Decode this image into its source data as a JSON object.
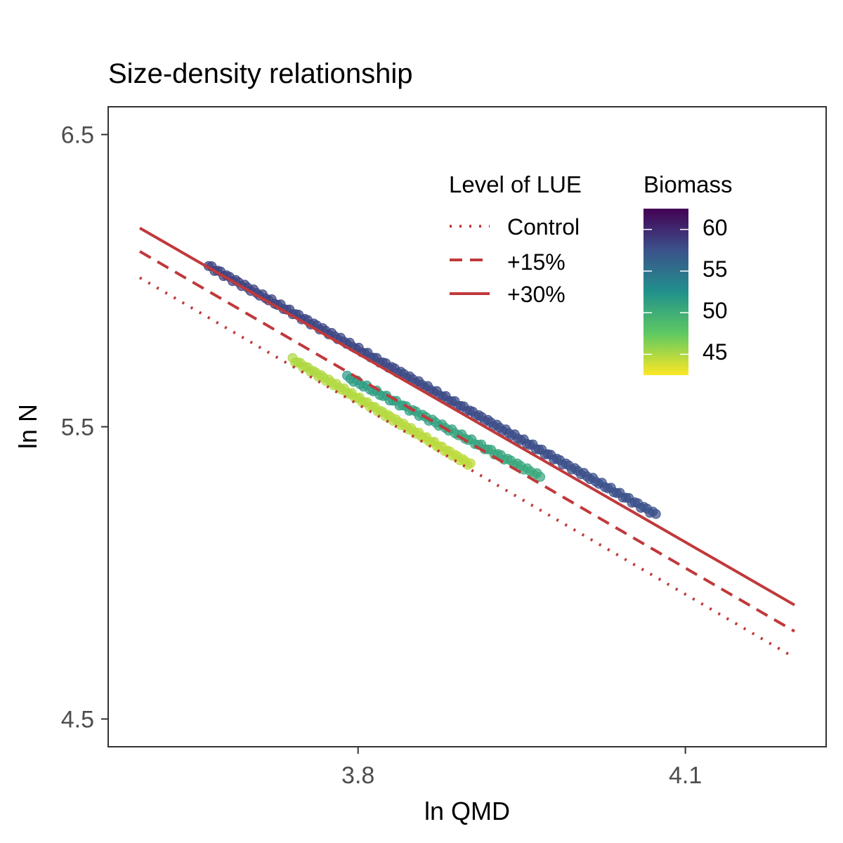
{
  "chart_data": {
    "type": "scatter",
    "title": "Size-density relationship",
    "xlabel": "ln QMD",
    "ylabel": "ln N",
    "xlim": [
      3.571,
      4.229
    ],
    "ylim": [
      4.405,
      6.595
    ],
    "x_ticks": [
      3.8,
      4.1
    ],
    "x_tick_labels": [
      "3.8",
      "4.1"
    ],
    "y_ticks": [
      4.5,
      5.5,
      6.5
    ],
    "y_tick_labels": [
      "4.5",
      "5.5",
      "6.5"
    ],
    "grid": false,
    "legend_position": "top-right",
    "line_legend": {
      "title": "Level of LUE",
      "entries": [
        {
          "label": "Control",
          "dash": "dotted"
        },
        {
          "label": "+15%",
          "dash": "dashed"
        },
        {
          "label": "+30%",
          "dash": "solid"
        }
      ]
    },
    "color_legend": {
      "title": "Biomass",
      "min": 42.5,
      "max": 62.5,
      "ticks": [
        60,
        55,
        50,
        45
      ],
      "tick_labels": [
        "60",
        "55",
        "50",
        "45"
      ],
      "palette": [
        "#fde725",
        "#5ec962",
        "#21918c",
        "#3b528b",
        "#440154"
      ]
    },
    "line_color": "#c0393b",
    "lines": [
      {
        "name": "Control",
        "dash": "dotted",
        "x": [
          3.6,
          4.2
        ],
        "y": [
          6.01,
          4.71
        ]
      },
      {
        "name": "+15%",
        "dash": "dashed",
        "x": [
          3.6,
          4.2
        ],
        "y": [
          6.1,
          4.8
        ]
      },
      {
        "name": "+30%",
        "dash": "solid",
        "x": [
          3.6,
          4.2
        ],
        "y": [
          6.18,
          4.89
        ]
      }
    ],
    "point_groups": [
      {
        "x_start": 3.663,
        "x_end": 4.073,
        "y_start": 6.05,
        "y_end": 5.2,
        "n": 150,
        "biomass_start": 58.5,
        "biomass_end": 57.5
      },
      {
        "x_start": 3.79,
        "x_end": 3.967,
        "y_start": 5.67,
        "y_end": 5.33,
        "n": 60,
        "biomass_start": 51.5,
        "biomass_end": 50.5
      },
      {
        "x_start": 3.74,
        "x_end": 3.903,
        "y_start": 5.73,
        "y_end": 5.37,
        "n": 70,
        "biomass_start": 45.0,
        "biomass_end": 44.5
      }
    ]
  }
}
